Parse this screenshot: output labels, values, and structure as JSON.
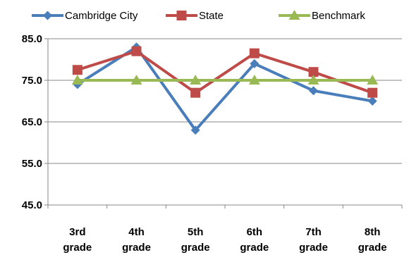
{
  "chart_data": {
    "type": "line",
    "categories": [
      "3rd grade",
      "4th grade",
      "5th grade",
      "6th grade",
      "7th grade",
      "8th grade"
    ],
    "category_lines": [
      [
        "3rd",
        "grade"
      ],
      [
        "4th",
        "grade"
      ],
      [
        "5th",
        "grade"
      ],
      [
        "6th",
        "grade"
      ],
      [
        "7th",
        "grade"
      ],
      [
        "8th",
        "grade"
      ]
    ],
    "series": [
      {
        "name": "Cambridge City",
        "values": [
          74,
          83,
          63,
          79,
          72.5,
          70
        ],
        "color": "#4a7ebb",
        "marker": "diamond"
      },
      {
        "name": "State",
        "values": [
          77.5,
          82,
          72,
          81.5,
          77,
          72
        ],
        "color": "#be4b48",
        "marker": "square"
      },
      {
        "name": "Benchmark",
        "values": [
          75,
          75,
          75,
          75,
          75,
          75
        ],
        "color": "#98b954",
        "marker": "triangle"
      }
    ],
    "yticks": [
      "45.0",
      "55.0",
      "65.0",
      "75.0",
      "85.0"
    ],
    "ylim": [
      45,
      85
    ],
    "grid": true,
    "legend_position": "top",
    "title": "",
    "xlabel": "",
    "ylabel": ""
  }
}
